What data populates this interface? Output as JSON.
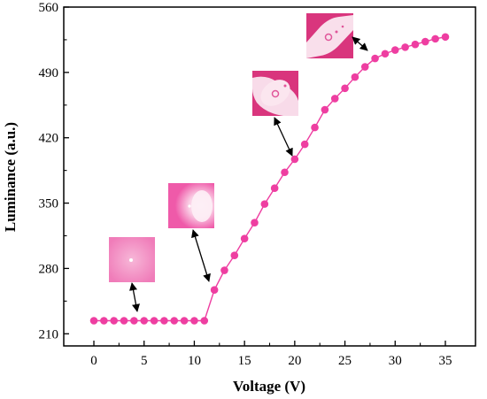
{
  "chart_data": {
    "type": "line",
    "xlabel": "Voltage (V)",
    "ylabel": "Luminance (a.u.)",
    "xlim": [
      -3,
      38
    ],
    "ylim": [
      197,
      560
    ],
    "xticks": [
      0,
      5,
      10,
      15,
      20,
      25,
      30,
      35
    ],
    "yticks": [
      210,
      280,
      350,
      420,
      490,
      560
    ],
    "grid": false,
    "legend": "none",
    "color": "#ee3ea1",
    "series": [
      {
        "x": [
          0,
          1,
          2,
          3,
          4,
          5,
          6,
          7,
          8,
          9,
          10,
          11,
          12,
          13,
          14,
          15,
          16,
          17,
          18,
          19,
          20,
          21,
          22,
          23,
          24,
          25,
          26,
          27,
          28,
          29,
          30,
          31,
          32,
          33,
          34,
          35
        ],
        "y": [
          224,
          224,
          224,
          224,
          224,
          224,
          224,
          224,
          224,
          224,
          224,
          224,
          257,
          278,
          294,
          312,
          329,
          349,
          366,
          383,
          397,
          413,
          431,
          450,
          462,
          473,
          485,
          496,
          505,
          510,
          514,
          517,
          520,
          523,
          526,
          528
        ]
      }
    ],
    "annotations": [
      {
        "target_x": 5,
        "target_y": 224,
        "inset": "pink-square-single-dot"
      },
      {
        "target_x": 11,
        "target_y": 255,
        "inset": "pink-square-light-patch"
      },
      {
        "target_x": 20,
        "target_y": 400,
        "inset": "pink-square-bright-blob"
      },
      {
        "target_x": 26,
        "target_y": 500,
        "inset": "pink-square-diagonal-band"
      }
    ]
  }
}
